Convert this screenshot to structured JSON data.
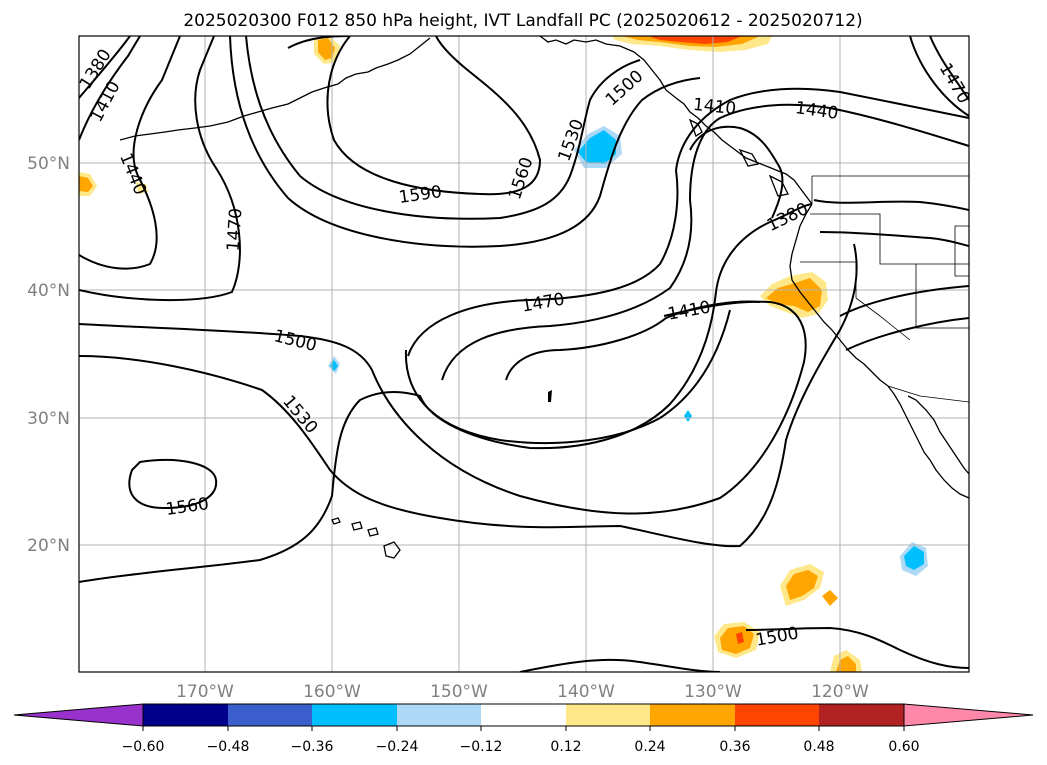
{
  "title": "2025020300 F012 850 hPa height, IVT Landfall PC (2025020612 - 2025020712)",
  "latitude_labels": [
    "50°N",
    "40°N",
    "30°N",
    "20°N"
  ],
  "longitude_labels": [
    "170°W",
    "160°W",
    "150°W",
    "140°W",
    "130°W",
    "120°W"
  ],
  "colorbar": {
    "tick_labels": [
      "−0.60",
      "−0.48",
      "−0.36",
      "−0.24",
      "−0.12",
      "0.12",
      "0.24",
      "0.36",
      "0.48",
      "0.60"
    ],
    "under_color": "#9932cc",
    "over_color": "#ff88aa",
    "bin_colors": [
      "#00008b",
      "#3a5fcd",
      "#00bfff",
      "#add8f6",
      "#ffffff",
      "#ffe88a",
      "#ffa500",
      "#ff4500",
      "#b22222"
    ]
  },
  "contour_labels": [
    "1380",
    "1410",
    "1440",
    "1470",
    "1500",
    "1530",
    "1560",
    "1590",
    "1560",
    "1530",
    "1500",
    "1440",
    "1410",
    "1380",
    "1470",
    "1410",
    "1470",
    "1500",
    "1530",
    "1560",
    "1500"
  ],
  "contour_color": "#000000",
  "positive_colors": [
    "#ffe88a",
    "#ffa500",
    "#ff4500"
  ],
  "negative_colors": [
    "#add8f6",
    "#00bfff"
  ]
}
